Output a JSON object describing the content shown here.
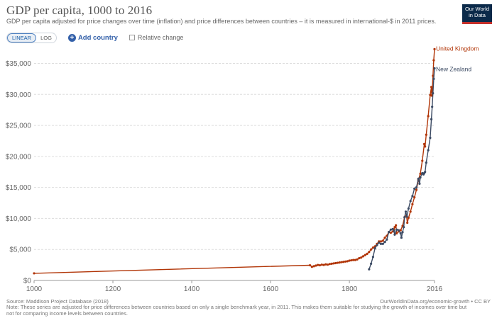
{
  "header": {
    "title": "GDP per capita, 1000 to 2016",
    "subtitle": "GDP per capita adjusted for price changes over time (inflation) and price differences between countries – it is measured in international-$ in 2011 prices.",
    "logo_line1": "Our World",
    "logo_line2": "in Data"
  },
  "controls": {
    "linear_label": "LINEAR",
    "log_label": "LOG",
    "add_country_label": "Add country",
    "relative_change_label": "Relative change"
  },
  "footer": {
    "source": "Source: Maddison Project Database (2018)",
    "url": "OurWorldInData.org/economic-growth • CC BY",
    "note": "Note: These series are adjusted for price differences between countries based on only a single benchmark year, in 2011. This makes them suitable for studying the growth of incomes over time but not for comparing income levels between countries."
  },
  "colors": {
    "uk": "#b13507",
    "nz": "#3b4a63",
    "grid": "#dddddd"
  },
  "chart_data": {
    "type": "line",
    "title": "GDP per capita, 1000 to 2016",
    "xlim": [
      1000,
      2016
    ],
    "ylim": [
      0,
      37000
    ],
    "x_ticks": [
      "1000",
      "1200",
      "1400",
      "1600",
      "1800",
      "2016"
    ],
    "y_ticks": [
      "$0",
      "$5,000",
      "$10,000",
      "$15,000",
      "$20,000",
      "$25,000",
      "$30,000",
      "$35,000"
    ],
    "y_tick_values": [
      0,
      5000,
      10000,
      15000,
      20000,
      25000,
      30000,
      35000
    ],
    "x_tick_values": [
      1000,
      1200,
      1400,
      1600,
      1800,
      2016
    ],
    "grid": true,
    "series": [
      {
        "name": "United Kingdom",
        "color": "#b13507",
        "points": [
          [
            1000,
            1150
          ],
          [
            1700,
            2450
          ],
          [
            1705,
            2200
          ],
          [
            1710,
            2300
          ],
          [
            1715,
            2400
          ],
          [
            1720,
            2500
          ],
          [
            1725,
            2450
          ],
          [
            1730,
            2550
          ],
          [
            1735,
            2500
          ],
          [
            1740,
            2600
          ],
          [
            1745,
            2550
          ],
          [
            1750,
            2650
          ],
          [
            1755,
            2700
          ],
          [
            1760,
            2750
          ],
          [
            1765,
            2800
          ],
          [
            1770,
            2850
          ],
          [
            1775,
            2900
          ],
          [
            1780,
            2950
          ],
          [
            1785,
            3000
          ],
          [
            1790,
            3050
          ],
          [
            1795,
            3100
          ],
          [
            1800,
            3200
          ],
          [
            1805,
            3250
          ],
          [
            1810,
            3300
          ],
          [
            1815,
            3300
          ],
          [
            1820,
            3400
          ],
          [
            1825,
            3600
          ],
          [
            1830,
            3700
          ],
          [
            1835,
            3900
          ],
          [
            1840,
            4100
          ],
          [
            1845,
            4300
          ],
          [
            1850,
            4600
          ],
          [
            1855,
            5000
          ],
          [
            1860,
            5300
          ],
          [
            1865,
            5500
          ],
          [
            1870,
            5900
          ],
          [
            1875,
            6300
          ],
          [
            1880,
            6300
          ],
          [
            1885,
            6400
          ],
          [
            1890,
            6900
          ],
          [
            1895,
            7200
          ],
          [
            1900,
            7800
          ],
          [
            1905,
            7700
          ],
          [
            1910,
            7900
          ],
          [
            1913,
            8200
          ],
          [
            1915,
            8600
          ],
          [
            1918,
            8900
          ],
          [
            1920,
            7600
          ],
          [
            1925,
            7900
          ],
          [
            1930,
            8100
          ],
          [
            1935,
            8800
          ],
          [
            1940,
            10200
          ],
          [
            1945,
            10400
          ],
          [
            1947,
            9300
          ],
          [
            1950,
            10100
          ],
          [
            1955,
            11100
          ],
          [
            1960,
            12300
          ],
          [
            1965,
            13400
          ],
          [
            1970,
            14600
          ],
          [
            1975,
            16200
          ],
          [
            1980,
            17200
          ],
          [
            1985,
            19300
          ],
          [
            1990,
            22000
          ],
          [
            1992,
            21600
          ],
          [
            1995,
            23500
          ],
          [
            2000,
            26500
          ],
          [
            2005,
            29900
          ],
          [
            2008,
            31200
          ],
          [
            2009,
            29800
          ],
          [
            2010,
            30300
          ],
          [
            2012,
            33000
          ],
          [
            2014,
            35500
          ],
          [
            2016,
            37300
          ]
        ]
      },
      {
        "name": "New Zealand",
        "color": "#3b4a63",
        "points": [
          [
            1850,
            1800
          ],
          [
            1855,
            2700
          ],
          [
            1860,
            3800
          ],
          [
            1865,
            5200
          ],
          [
            1870,
            5700
          ],
          [
            1875,
            6100
          ],
          [
            1880,
            5900
          ],
          [
            1885,
            5900
          ],
          [
            1890,
            6200
          ],
          [
            1895,
            6600
          ],
          [
            1900,
            7800
          ],
          [
            1905,
            8200
          ],
          [
            1910,
            8300
          ],
          [
            1913,
            8000
          ],
          [
            1915,
            7400
          ],
          [
            1920,
            8200
          ],
          [
            1925,
            8100
          ],
          [
            1930,
            7600
          ],
          [
            1932,
            6900
          ],
          [
            1935,
            7800
          ],
          [
            1938,
            8600
          ],
          [
            1940,
            10200
          ],
          [
            1943,
            11100
          ],
          [
            1946,
            10300
          ],
          [
            1950,
            11600
          ],
          [
            1955,
            12800
          ],
          [
            1960,
            13600
          ],
          [
            1965,
            14800
          ],
          [
            1970,
            15000
          ],
          [
            1975,
            16400
          ],
          [
            1978,
            15600
          ],
          [
            1980,
            16600
          ],
          [
            1985,
            17300
          ],
          [
            1988,
            17100
          ],
          [
            1990,
            17300
          ],
          [
            1992,
            17500
          ],
          [
            1995,
            19000
          ],
          [
            2000,
            21000
          ],
          [
            2005,
            23000
          ],
          [
            2008,
            26000
          ],
          [
            2010,
            28000
          ],
          [
            2012,
            30200
          ],
          [
            2014,
            32500
          ],
          [
            2016,
            34200
          ]
        ]
      }
    ]
  }
}
